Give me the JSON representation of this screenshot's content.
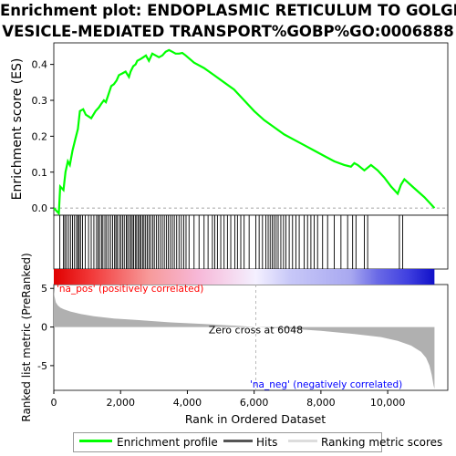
{
  "title_line1": "Enrichment plot: ENDOPLASMIC RETICULUM TO GOLGI",
  "title_line2": "VESICLE-MEDIATED TRANSPORT%GOBP%GO:0006888",
  "legend": {
    "enrichment_profile": "Enrichment profile",
    "hits": "Hits",
    "ranking_metric_scores": "Ranking metric scores"
  },
  "colors": {
    "profile": "#00ff00",
    "hits": "#000000",
    "metric_fill": "#b0b0b0",
    "pos_label": "#ff0000",
    "neg_label": "#0000ff"
  },
  "chart_data": {
    "type": "line",
    "n_genes": 11400,
    "es_panel": {
      "ylabel": "Enrichment score (ES)",
      "ylim": [
        -0.02,
        0.46
      ],
      "yticks": [
        0.0,
        0.1,
        0.2,
        0.3,
        0.4
      ],
      "series": [
        {
          "name": "Enrichment profile",
          "x": [
            0,
            150,
            190,
            290,
            350,
            420,
            480,
            560,
            640,
            720,
            780,
            880,
            960,
            1040,
            1120,
            1250,
            1350,
            1420,
            1500,
            1560,
            1650,
            1720,
            1800,
            1880,
            1950,
            2050,
            2150,
            2250,
            2300,
            2380,
            2450,
            2500,
            2600,
            2680,
            2760,
            2850,
            2950,
            3050,
            3150,
            3250,
            3350,
            3450,
            3550,
            3650,
            3750,
            3850,
            3950,
            4200,
            4500,
            4800,
            5100,
            5400,
            5700,
            6000,
            6300,
            6600,
            6900,
            7200,
            7500,
            7800,
            8100,
            8400,
            8700,
            8900,
            9000,
            9100,
            9300,
            9500,
            9700,
            9900,
            10100,
            10300,
            10400,
            10500,
            10800,
            11100,
            11400
          ],
          "y": [
            0.0,
            -0.015,
            0.06,
            0.05,
            0.1,
            0.13,
            0.12,
            0.16,
            0.19,
            0.22,
            0.27,
            0.275,
            0.26,
            0.255,
            0.25,
            0.27,
            0.28,
            0.29,
            0.3,
            0.295,
            0.32,
            0.34,
            0.345,
            0.355,
            0.37,
            0.375,
            0.38,
            0.365,
            0.38,
            0.395,
            0.4,
            0.41,
            0.415,
            0.42,
            0.425,
            0.41,
            0.43,
            0.425,
            0.42,
            0.425,
            0.435,
            0.44,
            0.435,
            0.43,
            0.43,
            0.432,
            0.425,
            0.405,
            0.39,
            0.37,
            0.35,
            0.33,
            0.3,
            0.27,
            0.245,
            0.225,
            0.205,
            0.19,
            0.175,
            0.16,
            0.145,
            0.13,
            0.12,
            0.115,
            0.125,
            0.12,
            0.105,
            0.12,
            0.105,
            0.085,
            0.06,
            0.04,
            0.065,
            0.08,
            0.055,
            0.03,
            0.0
          ]
        }
      ]
    },
    "hits_x": [
      180,
      290,
      330,
      380,
      440,
      500,
      560,
      620,
      680,
      720,
      760,
      800,
      860,
      940,
      1040,
      1120,
      1200,
      1280,
      1330,
      1370,
      1430,
      1470,
      1530,
      1580,
      1640,
      1700,
      1760,
      1820,
      1860,
      1900,
      1960,
      2010,
      2060,
      2110,
      2170,
      2210,
      2260,
      2310,
      2350,
      2390,
      2440,
      2480,
      2530,
      2570,
      2610,
      2660,
      2700,
      2750,
      2800,
      2850,
      2900,
      2960,
      3010,
      3070,
      3130,
      3190,
      3250,
      3310,
      3370,
      3430,
      3490,
      3550,
      3610,
      3680,
      3750,
      3820,
      3890,
      3960,
      4050,
      4200,
      4350,
      4500,
      4620,
      4750,
      4820,
      4900,
      5000,
      5100,
      5200,
      5300,
      5420,
      5500,
      5600,
      5700,
      5850,
      6050,
      6150,
      6250,
      6350,
      6420,
      6480,
      6540,
      6600,
      6660,
      6720,
      6800,
      6880,
      6950,
      7050,
      7150,
      7250,
      7350,
      7500,
      7600,
      7700,
      7800,
      7900,
      8050,
      8200,
      8400,
      8600,
      8800,
      8950,
      9050,
      9300,
      9400,
      10350,
      10450
    ],
    "ranked_metric": {
      "ylabel": "Ranked list metric (PreRanked)",
      "ylim": [
        -8.2,
        5.5
      ],
      "yticks": [
        -5,
        0,
        5
      ],
      "x": [
        0,
        20,
        60,
        120,
        200,
        300,
        500,
        800,
        1200,
        1800,
        2500,
        3500,
        4500,
        5500,
        6048,
        7000,
        8000,
        9000,
        9800,
        10300,
        10700,
        11000,
        11150,
        11250,
        11320,
        11370,
        11400
      ],
      "y": [
        5.0,
        4.0,
        3.2,
        2.8,
        2.5,
        2.3,
        2.0,
        1.7,
        1.4,
        1.1,
        0.9,
        0.6,
        0.4,
        0.15,
        0.0,
        -0.2,
        -0.5,
        -0.9,
        -1.3,
        -1.8,
        -2.4,
        -3.2,
        -4.0,
        -5.0,
        -6.2,
        -7.5,
        -8.0
      ]
    },
    "zero_cross": 6048,
    "zero_cross_label": "Zero cross at 6048",
    "pos_label": "'na_pos' (positively correlated)",
    "neg_label": "'na_neg' (negatively correlated)",
    "xlabel": "Rank in Ordered Dataset",
    "xticks": [
      0,
      2000,
      4000,
      6000,
      8000,
      10000
    ],
    "xtick_labels": [
      "0",
      "2,000",
      "4,000",
      "6,000",
      "8,000",
      "10,000"
    ]
  }
}
